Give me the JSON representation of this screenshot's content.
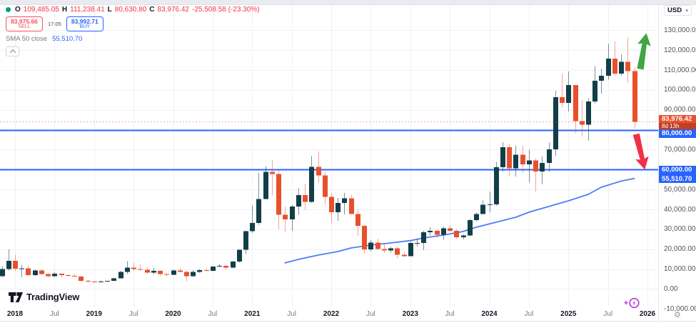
{
  "ui": {
    "legend": {
      "ohlc": {
        "o_key": "O",
        "o_val": "109,485.05",
        "h_key": "H",
        "h_val": "111,238.41",
        "l_key": "L",
        "l_val": "80,630.80",
        "c_key": "C",
        "c_val": "83,976.42",
        "change": "-25,508.58 (-23.30%)"
      },
      "sell": {
        "price": "83,975.66",
        "label": "SELL"
      },
      "buy": {
        "price": "83,992.71",
        "label": "BUY"
      },
      "spread": "17.05",
      "indicator": {
        "name": "SMA 50 close",
        "value": "55,510.70"
      }
    },
    "price_axis": {
      "currency": "USD"
    },
    "footer": {
      "brand": "TradingView"
    }
  },
  "chart_data": {
    "type": "candlestick",
    "interval": "1M",
    "start_month": "2017-11",
    "x_axis": {
      "ticks": [
        "2018",
        "Jul",
        "2019",
        "Jul",
        "2020",
        "Jul",
        "2021",
        "Jul",
        "2022",
        "Jul",
        "2023",
        "Jul",
        "2024",
        "Jul",
        "2025",
        "Jul",
        "2026"
      ]
    },
    "y_axis": {
      "currency": "USD",
      "tick_values": [
        130000,
        120000,
        110000,
        100000,
        90000,
        70000,
        50000,
        40000,
        30000,
        20000,
        10000,
        0,
        -10000
      ],
      "grid_step": 10000,
      "grid_max": 130000,
      "grid_min": 0
    },
    "candles_ohlc": [
      [
        6450,
        11400,
        5880,
        9950
      ],
      [
        9950,
        19870,
        9380,
        14160
      ],
      [
        14160,
        17180,
        9000,
        10200
      ],
      [
        10200,
        12100,
        5950,
        10300
      ],
      [
        10300,
        11700,
        6600,
        6930
      ],
      [
        6930,
        9760,
        6430,
        9240
      ],
      [
        9240,
        9990,
        7040,
        7490
      ],
      [
        7490,
        7780,
        5780,
        6400
      ],
      [
        6400,
        8500,
        6070,
        7730
      ],
      [
        7730,
        7760,
        5860,
        7030
      ],
      [
        7030,
        7430,
        6170,
        6630
      ],
      [
        6630,
        7680,
        6200,
        6300
      ],
      [
        6300,
        6600,
        3650,
        4040
      ],
      [
        4040,
        4410,
        3120,
        3740
      ],
      [
        3740,
        4110,
        3350,
        3430
      ],
      [
        3430,
        4220,
        3330,
        3810
      ],
      [
        3810,
        4140,
        3670,
        4090
      ],
      [
        4090,
        5650,
        4030,
        5270
      ],
      [
        5270,
        9100,
        5270,
        8550
      ],
      [
        8550,
        13970,
        7430,
        10790
      ],
      [
        10790,
        13130,
        9070,
        10080
      ],
      [
        10080,
        12320,
        9320,
        9600
      ],
      [
        9600,
        10950,
        7700,
        8280
      ],
      [
        8280,
        10540,
        7290,
        9150
      ],
      [
        9150,
        9550,
        6520,
        7550
      ],
      [
        7550,
        7750,
        6420,
        7190
      ],
      [
        7190,
        9570,
        6850,
        9350
      ],
      [
        9350,
        10500,
        8400,
        8520
      ],
      [
        8520,
        9220,
        3850,
        6430
      ],
      [
        6430,
        9470,
        6150,
        8620
      ],
      [
        8620,
        10070,
        8100,
        9450
      ],
      [
        9450,
        10380,
        8830,
        9140
      ],
      [
        9140,
        11440,
        8900,
        11350
      ],
      [
        11350,
        12480,
        10950,
        11650
      ],
      [
        11650,
        12080,
        9820,
        10780
      ],
      [
        10780,
        14100,
        10380,
        13800
      ],
      [
        13800,
        19860,
        13200,
        19700
      ],
      [
        19700,
        29300,
        17570,
        29000
      ],
      [
        29000,
        41950,
        28130,
        33140
      ],
      [
        33140,
        58350,
        32300,
        45240
      ],
      [
        45240,
        61780,
        44950,
        58800
      ],
      [
        58800,
        64850,
        46930,
        57750
      ],
      [
        57750,
        59500,
        30000,
        37330
      ],
      [
        37330,
        41330,
        28800,
        35040
      ],
      [
        35040,
        42230,
        29300,
        41460
      ],
      [
        41460,
        50500,
        37330,
        47110
      ],
      [
        47110,
        52920,
        39600,
        43790
      ],
      [
        43790,
        66970,
        43280,
        61310
      ],
      [
        61310,
        69000,
        53250,
        57000
      ],
      [
        57000,
        59050,
        42330,
        46210
      ],
      [
        46210,
        47990,
        32930,
        38480
      ],
      [
        38480,
        45820,
        34320,
        43190
      ],
      [
        43190,
        48190,
        37550,
        45540
      ],
      [
        45540,
        47440,
        37580,
        37640
      ],
      [
        37640,
        40000,
        26700,
        31790
      ],
      [
        31790,
        31960,
        17600,
        19920
      ],
      [
        19920,
        24670,
        18780,
        23300
      ],
      [
        23300,
        25200,
        19520,
        20050
      ],
      [
        20050,
        22800,
        18120,
        19420
      ],
      [
        19420,
        21080,
        18190,
        20490
      ],
      [
        20490,
        21470,
        15480,
        17170
      ],
      [
        17170,
        18390,
        16260,
        16540
      ],
      [
        16540,
        23960,
        16490,
        23130
      ],
      [
        23130,
        25250,
        21400,
        23140
      ],
      [
        23140,
        29180,
        19550,
        28470
      ],
      [
        28470,
        31050,
        26940,
        29230
      ],
      [
        29230,
        29840,
        25800,
        27220
      ],
      [
        27220,
        31400,
        24800,
        30470
      ],
      [
        30470,
        31850,
        28860,
        29230
      ],
      [
        29230,
        30180,
        25350,
        25930
      ],
      [
        25930,
        27480,
        24900,
        26960
      ],
      [
        26960,
        35150,
        26540,
        34650
      ],
      [
        34650,
        38420,
        34080,
        37710
      ],
      [
        37710,
        44700,
        37610,
        42270
      ],
      [
        42270,
        48970,
        38500,
        42580
      ],
      [
        42580,
        63930,
        41880,
        61130
      ],
      [
        61130,
        73780,
        59000,
        71280
      ],
      [
        71280,
        72800,
        56500,
        60640
      ],
      [
        60640,
        71950,
        56550,
        67530
      ],
      [
        67530,
        71990,
        58400,
        62670
      ],
      [
        62670,
        69980,
        53500,
        64620
      ],
      [
        64620,
        65600,
        49000,
        58970
      ],
      [
        58970,
        66500,
        52550,
        63330
      ],
      [
        63330,
        73600,
        58900,
        70220
      ],
      [
        70220,
        99600,
        66800,
        96450
      ],
      [
        96450,
        108270,
        91300,
        93430
      ],
      [
        93430,
        109350,
        89160,
        102400
      ],
      [
        102400,
        102500,
        78250,
        84350
      ],
      [
        84350,
        95000,
        76600,
        82550
      ],
      [
        82550,
        95770,
        74430,
        94180
      ],
      [
        94180,
        112000,
        93360,
        104600
      ],
      [
        104600,
        110530,
        98240,
        107170
      ],
      [
        107170,
        123240,
        105160,
        115770
      ],
      [
        115770,
        124450,
        107270,
        108230
      ],
      [
        108230,
        117900,
        107250,
        114050
      ],
      [
        114050,
        126270,
        103530,
        109485.05
      ],
      [
        109485.05,
        111238.41,
        80630.8,
        83976.42
      ]
    ],
    "sma50": {
      "name": "SMA 50 close",
      "last_value": 55510.7,
      "last_label": "55,510.70",
      "points_by_index": [
        [
          43,
          13100
        ],
        [
          45,
          14860
        ],
        [
          48,
          17020
        ],
        [
          51,
          18810
        ],
        [
          53,
          20610
        ],
        [
          56,
          22040
        ],
        [
          59,
          23120
        ],
        [
          62,
          24300
        ],
        [
          64,
          25630
        ],
        [
          67,
          27070
        ],
        [
          70,
          28860
        ],
        [
          72,
          31020
        ],
        [
          75,
          33530
        ],
        [
          78,
          36040
        ],
        [
          80,
          38560
        ],
        [
          83,
          41430
        ],
        [
          86,
          44300
        ],
        [
          89,
          47530
        ],
        [
          91,
          51120
        ],
        [
          94,
          54200
        ],
        [
          96,
          55510.7
        ]
      ]
    },
    "levels": [
      {
        "value": 80000,
        "label": "80,000.00",
        "color": "#2962ff"
      },
      {
        "value": 60000,
        "label": "60,000.00",
        "color": "#2962ff"
      }
    ],
    "current_price": {
      "value": 83976.42,
      "label": "83,976.42",
      "countdown": "8d 13h",
      "color": "#e8502d"
    },
    "annotations": [
      {
        "type": "arrow-up",
        "color": "#42a443"
      },
      {
        "type": "arrow-down",
        "color": "#f03145"
      }
    ],
    "colors": {
      "up_body": "#123e48",
      "down_body": "#e8502d",
      "up_wick": "rgba(18,62,72,0.55)",
      "down_wick": "rgba(232,80,45,0.5)",
      "sma": "#4f7df3",
      "grid": "#eef1f6",
      "level_blue": "#2962ff"
    }
  }
}
